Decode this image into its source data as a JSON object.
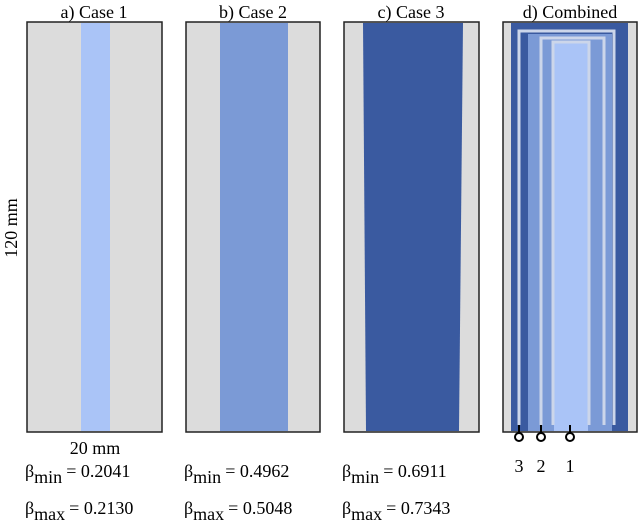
{
  "panels": [
    {
      "title": "a) Case 1",
      "beta_min": "= 0.2041",
      "beta_max": "= 0.2130"
    },
    {
      "title": "b) Case 2",
      "beta_min": "= 0.4962",
      "beta_max": "= 0.5048"
    },
    {
      "title": "c) Case 3",
      "beta_min": "= 0.6911",
      "beta_max": "= 0.7343"
    },
    {
      "title": "d) Combined"
    }
  ],
  "beta_symbol": "β",
  "min_label": "min",
  "max_label": "max",
  "height_label": "120 mm",
  "width_label": "20 mm",
  "port_labels": [
    "3",
    "2",
    "1"
  ]
}
